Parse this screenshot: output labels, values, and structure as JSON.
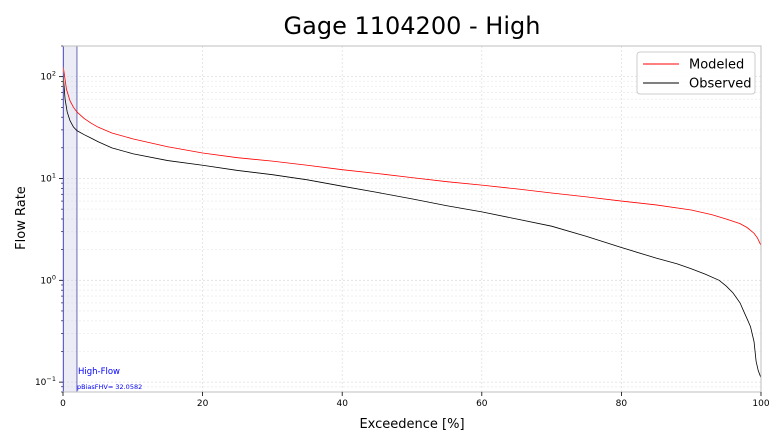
{
  "chart_data": {
    "type": "line",
    "title": "Gage 1104200 - High",
    "xlabel": "Exceedence [%]",
    "ylabel": "Flow Rate",
    "xlim": [
      0,
      100
    ],
    "ylim": [
      0.08,
      200
    ],
    "yscale": "log",
    "grid": true,
    "legend_position": "top-right",
    "x_ticks": [
      0,
      20,
      40,
      60,
      80,
      100
    ],
    "y_ticks": [
      {
        "value": 0.1,
        "base": "10",
        "exp": "−1"
      },
      {
        "value": 1,
        "base": "10",
        "exp": "0"
      },
      {
        "value": 10,
        "base": "10",
        "exp": "1"
      },
      {
        "value": 100,
        "base": "10",
        "exp": "2"
      }
    ],
    "series": [
      {
        "name": "Modeled",
        "color": "#ff0000",
        "x": [
          0,
          0.5,
          1,
          1.5,
          2,
          3,
          4,
          5,
          7,
          10,
          15,
          20,
          25,
          30,
          35,
          40,
          45,
          50,
          55,
          60,
          65,
          70,
          75,
          80,
          85,
          90,
          93,
          95,
          97,
          98,
          99,
          99.5,
          100
        ],
        "y": [
          130,
          75,
          58,
          50,
          45,
          39,
          35,
          32,
          28,
          24.5,
          20.5,
          17.8,
          16,
          14.8,
          13.5,
          12.2,
          11.2,
          10.2,
          9.3,
          8.6,
          7.9,
          7.2,
          6.6,
          6.0,
          5.5,
          4.9,
          4.4,
          4.0,
          3.6,
          3.3,
          2.9,
          2.6,
          2.2
        ]
      },
      {
        "name": "Observed",
        "color": "#000000",
        "x": [
          0,
          0.3,
          0.6,
          1,
          1.5,
          2,
          3,
          4,
          5,
          7,
          10,
          15,
          20,
          25,
          30,
          35,
          40,
          45,
          50,
          55,
          60,
          65,
          70,
          75,
          80,
          85,
          88,
          90,
          92,
          94,
          95,
          96,
          97,
          97.5,
          98,
          98.5,
          99,
          99.3,
          99.6,
          100
        ],
        "y": [
          110,
          60,
          45,
          37,
          32,
          29.5,
          27,
          25,
          23,
          20,
          17.5,
          15,
          13.5,
          12,
          10.9,
          9.7,
          8.4,
          7.3,
          6.3,
          5.4,
          4.7,
          4.0,
          3.4,
          2.7,
          2.1,
          1.65,
          1.45,
          1.3,
          1.15,
          1.0,
          0.88,
          0.75,
          0.6,
          0.5,
          0.42,
          0.35,
          0.25,
          0.16,
          0.13,
          0.11
        ]
      }
    ],
    "highlight_region": {
      "x_start": 0,
      "x_end": 2,
      "label": "High-Flow"
    },
    "annotation": "pBiasFHV= 32.0582"
  }
}
